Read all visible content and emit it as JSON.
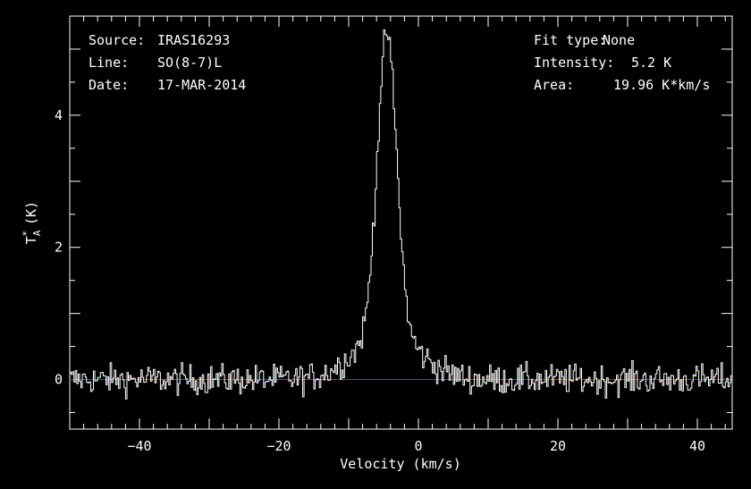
{
  "chart_data": {
    "type": "line",
    "xlabel": "Velocity (km/s)",
    "ylabel_main": "T",
    "ylabel_sup": "*",
    "ylabel_sub": "A",
    "ylabel_unit": "(K)",
    "xlim": [
      -50,
      45
    ],
    "ylim": [
      -0.75,
      5.5
    ],
    "xticks": [
      -40,
      -20,
      0,
      20,
      40
    ],
    "yticks": [
      0,
      2,
      4
    ],
    "baseline": 0,
    "colors": {
      "background": "#000000",
      "axes": "#ffffff",
      "spectrum": "#ffffff",
      "baseline": "#cc2222"
    },
    "info_left": [
      {
        "key": "Source:",
        "value": "IRAS16293"
      },
      {
        "key": "Line:",
        "value": "SO(8-7)L"
      },
      {
        "key": "Date:",
        "value": "17-MAR-2014"
      }
    ],
    "info_right": [
      {
        "key": "Fit type:",
        "value": "None"
      },
      {
        "key": "Intensity:",
        "value": "5.2 K"
      },
      {
        "key": "Area:",
        "value": "19.96 K*km/s"
      }
    ],
    "spectrum": {
      "x_start": -50,
      "x_end": 45,
      "x_step": 0.2,
      "noise_rms": 0.16,
      "peak_velocity": -4.6,
      "peak_intensity": 5.2,
      "core_width_kms": 1.4,
      "wing_width_kms": 4.5,
      "wing_intensity": 0.7
    }
  }
}
